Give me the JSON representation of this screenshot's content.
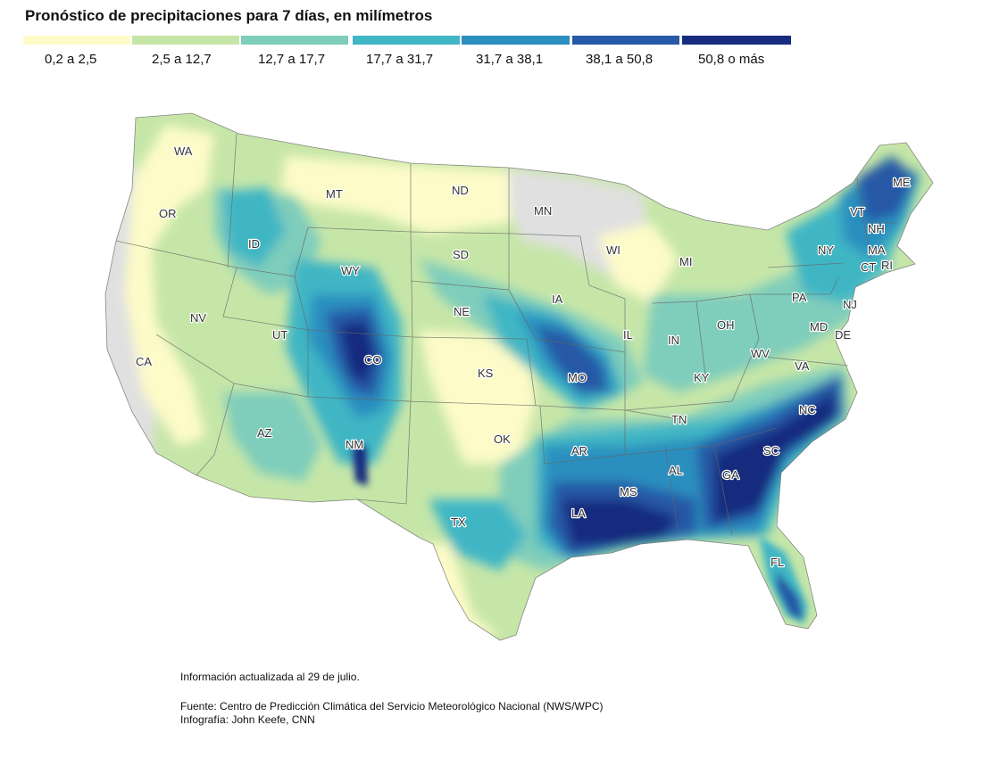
{
  "title": "Pronóstico de precipitaciones para 7 días, en milímetros",
  "legend": {
    "items": [
      {
        "label": "0,2 a 2,5",
        "color": "#fdfbc8"
      },
      {
        "label": "2,5 a 12,7",
        "color": "#c6e6a8"
      },
      {
        "label": "12,7 a 17,7",
        "color": "#7fcdbb"
      },
      {
        "label": "17,7 a 31,7",
        "color": "#41b6c4"
      },
      {
        "label": "31,7 a 38,1",
        "color": "#2c8fbf"
      },
      {
        "label": "38,1 a 50,8",
        "color": "#2659a6"
      },
      {
        "label": "50,8 o más",
        "color": "#172c7e"
      }
    ]
  },
  "map": {
    "no_data_color": "#e0e0e0",
    "states": [
      "WA",
      "OR",
      "CA",
      "ID",
      "NV",
      "MT",
      "WY",
      "UT",
      "AZ",
      "CO",
      "NM",
      "ND",
      "SD",
      "NE",
      "KS",
      "OK",
      "TX",
      "MN",
      "IA",
      "MO",
      "AR",
      "LA",
      "WI",
      "IL",
      "MI",
      "IN",
      "OH",
      "KY",
      "TN",
      "MS",
      "AL",
      "GA",
      "FL",
      "SC",
      "NC",
      "VA",
      "WV",
      "PA",
      "NY",
      "VT",
      "NH",
      "ME",
      "MA",
      "CT",
      "RI",
      "NJ",
      "DE",
      "MD"
    ]
  },
  "footer": {
    "updated": "Información actualizada al 29 de julio.",
    "source": "Fuente: Centro de Predicción Climática del Servicio Meteorológico Nacional (NWS/WPC)",
    "credit": "Infografía:  John Keefe, CNN"
  }
}
